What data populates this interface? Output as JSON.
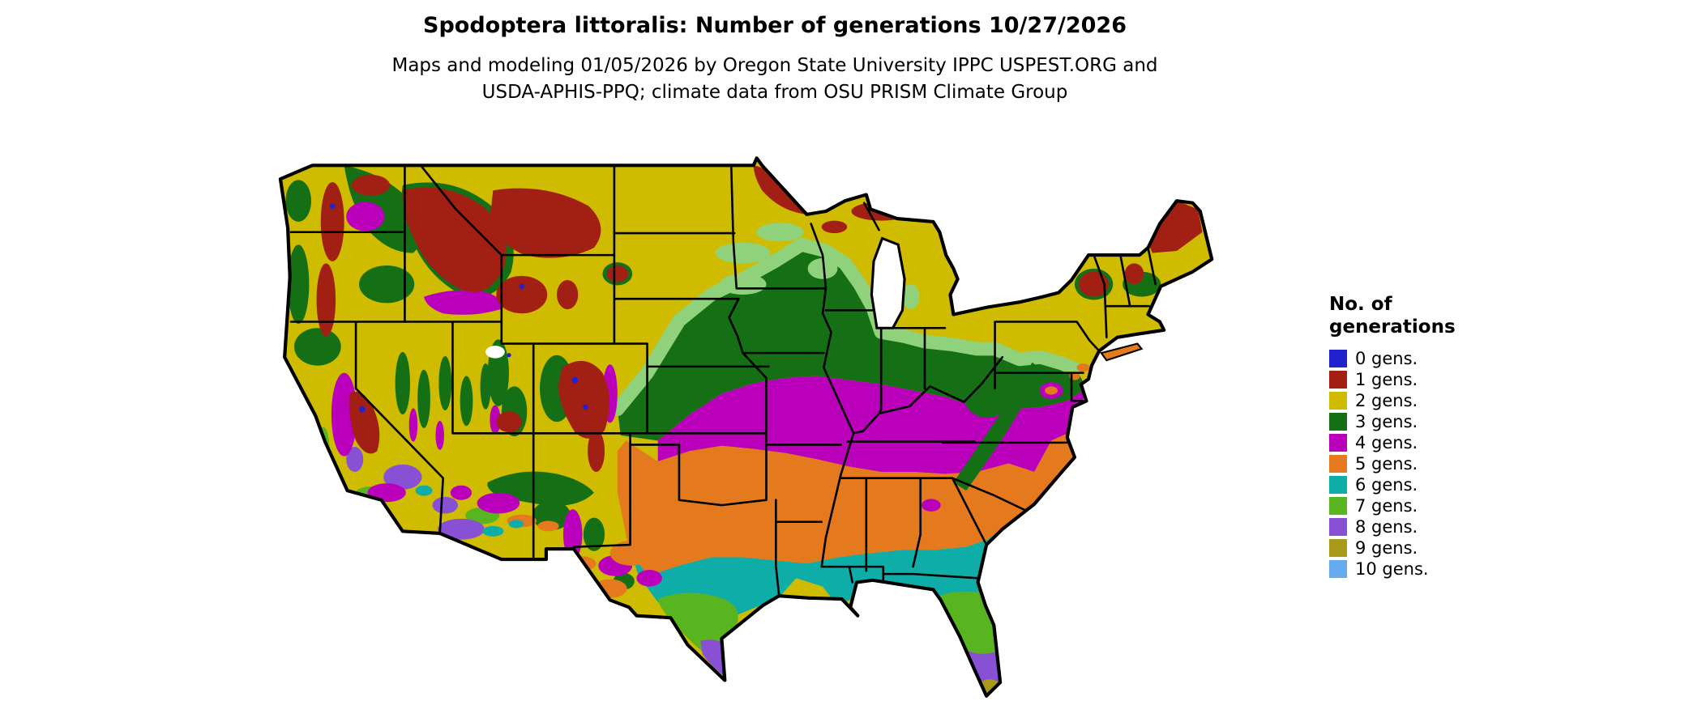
{
  "header": {
    "title": "Spodoptera littoralis: Number of generations 10/27/2026",
    "subtitle_line1": "Maps and modeling 01/05/2026 by Oregon State University IPPC USPEST.ORG and",
    "subtitle_line2": "USDA-APHIS-PPQ; climate data from OSU PRISM Climate Group"
  },
  "legend": {
    "title_line1": "No. of",
    "title_line2": "generations",
    "items": [
      {
        "generations": 0,
        "label": "0 gens.",
        "color": "#2222cc"
      },
      {
        "generations": 1,
        "label": "1 gens.",
        "color": "#a21f14"
      },
      {
        "generations": 2,
        "label": "2 gens.",
        "color": "#cfbc00"
      },
      {
        "generations": 3,
        "label": "3 gens.",
        "color": "#156f15"
      },
      {
        "generations": 4,
        "label": "4 gens.",
        "color": "#bb00bb"
      },
      {
        "generations": 5,
        "label": "5 gens.",
        "color": "#e5791e"
      },
      {
        "generations": 6,
        "label": "6 gens.",
        "color": "#0fada8"
      },
      {
        "generations": 7,
        "label": "7 gens.",
        "color": "#58b520"
      },
      {
        "generations": 8,
        "label": "8 gens.",
        "color": "#8850d2"
      },
      {
        "generations": 9,
        "label": "9 gens.",
        "color": "#a89a18"
      },
      {
        "generations": 10,
        "label": "10 gens.",
        "color": "#66aaee"
      }
    ]
  },
  "map": {
    "region": "Conterminous United States",
    "transition_color": "#90d27c",
    "water_color": "#ffffff",
    "border_color": "#000000"
  }
}
